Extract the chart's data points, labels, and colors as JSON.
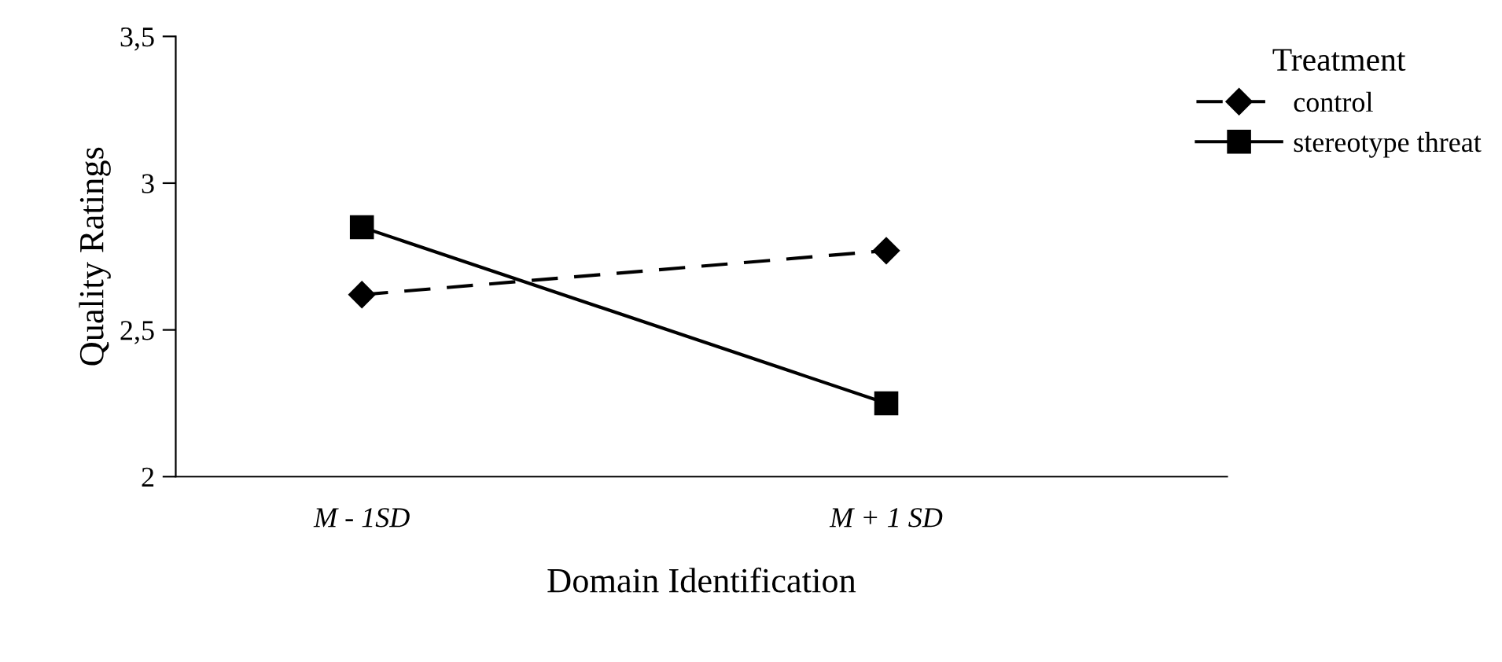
{
  "chart_data": {
    "type": "line",
    "xlabel": "Domain Identification",
    "ylabel": "Quality Ratings",
    "legend_title": "Treatment",
    "categories": [
      "M - 1SD",
      "M + 1 SD"
    ],
    "series": [
      {
        "name": "control",
        "color": "#000000",
        "marker": "diamond",
        "line_style": "dashed",
        "values": [
          2.62,
          2.77
        ]
      },
      {
        "name": "stereotype threat",
        "color": "#000000",
        "marker": "square",
        "line_style": "solid",
        "values": [
          2.85,
          2.25
        ]
      }
    ],
    "ylim": [
      2,
      3.5
    ],
    "yticks": [
      2,
      {
        "value": 2.5,
        "label": "2,5"
      },
      3,
      {
        "value": 3.5,
        "label": "3,5"
      }
    ],
    "grid": false,
    "legend": "top right"
  }
}
